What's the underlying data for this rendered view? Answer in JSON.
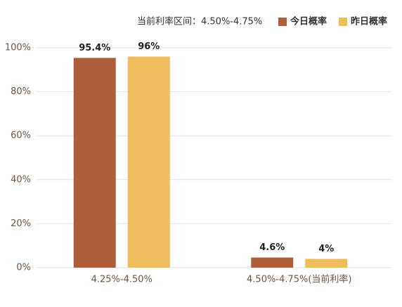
{
  "chart_data": {
    "type": "bar",
    "subtitle": "当前利率区间：4.50%-4.75%",
    "categories": [
      "4.25%-4.50%",
      "4.50%-4.75%(当前利率)"
    ],
    "series": [
      {
        "name": "今日概率",
        "color": "#ad5f3a",
        "values": [
          95.4,
          4.6
        ],
        "value_labels": [
          "95.4%",
          "4.6%"
        ]
      },
      {
        "name": "昨日概率",
        "color": "#efbc5e",
        "values": [
          96,
          4
        ],
        "value_labels": [
          "96%",
          "4%"
        ]
      }
    ],
    "ylim": [
      0,
      100
    ],
    "yticks": [
      {
        "value": 0,
        "label": "0%"
      },
      {
        "value": 20,
        "label": "20%"
      },
      {
        "value": 40,
        "label": "40%"
      },
      {
        "value": 60,
        "label": "60%"
      },
      {
        "value": 80,
        "label": "80%"
      },
      {
        "value": 100,
        "label": "100%"
      }
    ],
    "grid": true,
    "legend": "top-right"
  }
}
